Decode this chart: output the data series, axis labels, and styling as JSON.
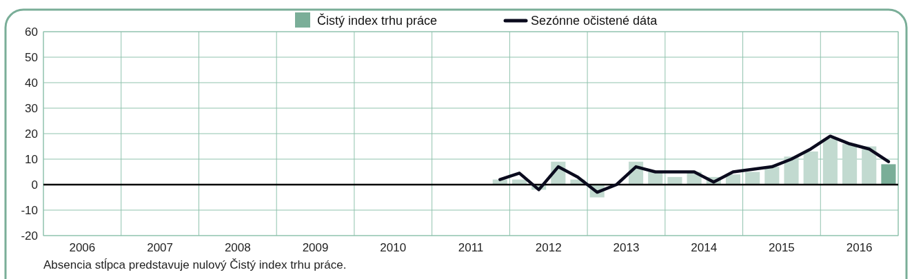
{
  "chart_data": {
    "type": "bar",
    "x": [
      2011.875,
      2012.125,
      2012.375,
      2012.625,
      2012.875,
      2013.125,
      2013.375,
      2013.625,
      2013.875,
      2014.125,
      2014.375,
      2014.625,
      2014.875,
      2015.125,
      2015.375,
      2015.625,
      2015.875,
      2016.125,
      2016.375,
      2016.625,
      2016.875
    ],
    "series": [
      {
        "name": "Čistý index trhu práce",
        "color": "#7aae98",
        "colors": [
          "#c2dad0",
          "#c2dad0",
          "#c2dad0",
          "#c2dad0",
          "#c2dad0",
          "#c2dad0",
          "#c2dad0",
          "#c2dad0",
          "#c2dad0",
          "#c2dad0",
          "#c2dad0",
          "#c2dad0",
          "#c2dad0",
          "#c2dad0",
          "#c2dad0",
          "#c2dad0",
          "#c2dad0",
          "#c2dad0",
          "#c2dad0",
          "#c2dad0",
          "#7aae98"
        ],
        "values": [
          2,
          2,
          -2,
          9,
          2,
          -5,
          null,
          9,
          5,
          3,
          5,
          3,
          4,
          5,
          7,
          11,
          13,
          18,
          16,
          15,
          8
        ]
      },
      {
        "name": "Sezónne očistené dáta",
        "type": "line",
        "color": "#0b0b1e",
        "values": [
          2,
          4.5,
          -2,
          7,
          3,
          -3,
          0,
          7,
          5,
          5,
          5,
          1,
          5,
          6,
          7,
          10,
          14,
          19,
          16,
          14,
          9
        ]
      }
    ],
    "xlim": [
      2006,
      2017
    ],
    "xticks": [
      {
        "value": 2006,
        "label": null
      },
      {
        "value": 2006.5,
        "label": "2006"
      },
      {
        "value": 2007,
        "label": null
      },
      {
        "value": 2007.5,
        "label": "2007"
      },
      {
        "value": 2008,
        "label": null
      },
      {
        "value": 2008.5,
        "label": "2008"
      },
      {
        "value": 2009,
        "label": null
      },
      {
        "value": 2009.5,
        "label": "2009"
      },
      {
        "value": 2010,
        "label": null
      },
      {
        "value": 2010.5,
        "label": "2010"
      },
      {
        "value": 2011,
        "label": null
      },
      {
        "value": 2011.5,
        "label": "2011"
      },
      {
        "value": 2012,
        "label": null
      },
      {
        "value": 2012.5,
        "label": "2012"
      },
      {
        "value": 2013,
        "label": null
      },
      {
        "value": 2013.5,
        "label": "2013"
      },
      {
        "value": 2014,
        "label": null
      },
      {
        "value": 2014.5,
        "label": "2014"
      },
      {
        "value": 2015,
        "label": null
      },
      {
        "value": 2015.5,
        "label": "2015"
      },
      {
        "value": 2016,
        "label": null
      },
      {
        "value": 2016.5,
        "label": "2016"
      },
      {
        "value": 2017,
        "label": null
      }
    ],
    "ylim": [
      -20,
      60
    ],
    "yticks": [
      -20,
      -10,
      0,
      10,
      20,
      30,
      40,
      50,
      60
    ],
    "ref_lines": [
      {
        "axis": "y",
        "value": 0,
        "label": null,
        "color": "#000000"
      }
    ],
    "grid": true,
    "legend": "top",
    "annotations": [
      "Absencia stĺpca predstavuje nulový Čistý index trhu práce."
    ]
  }
}
